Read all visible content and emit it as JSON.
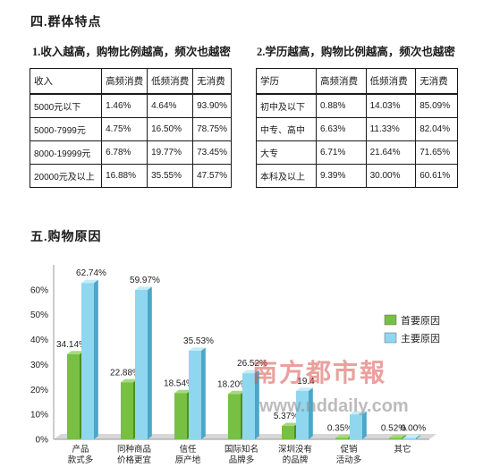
{
  "section4": {
    "title": "四.群体特点",
    "income": {
      "title": "1.收入越高，购物比例越高，频次也越密",
      "headers": [
        "收入",
        "高频消费",
        "低频消费",
        "无消费"
      ],
      "rows": [
        [
          "5000元以下",
          "1.46%",
          "4.64%",
          "93.90%"
        ],
        [
          "5000-7999元",
          "4.75%",
          "16.50%",
          "78.75%"
        ],
        [
          "8000-19999元",
          "6.78%",
          "19.77%",
          "73.45%"
        ],
        [
          "20000元及以上",
          "16.88%",
          "35.55%",
          "47.57%"
        ]
      ]
    },
    "education": {
      "title": "2.学历越高，购物比例越高，频次也越密",
      "headers": [
        "学历",
        "高频消费",
        "低频消费",
        "无消费"
      ],
      "rows": [
        [
          "初中及以下",
          "0.88%",
          "14.03%",
          "85.09%"
        ],
        [
          "中专、高中",
          "6.63%",
          "11.33%",
          "82.04%"
        ],
        [
          "大专",
          "6.71%",
          "21.64%",
          "71.65%"
        ],
        [
          "本科及以上",
          "9.39%",
          "30.00%",
          "60.61%"
        ]
      ]
    }
  },
  "section5": {
    "title": "五.购物原因"
  },
  "watermark": {
    "name": "南方都市報",
    "url": "www.nddaily.com"
  },
  "chart_data": {
    "type": "bar",
    "categories": [
      [
        "产品",
        "款式多"
      ],
      [
        "同种商品",
        "价格更宜"
      ],
      [
        "信任",
        "原产地"
      ],
      [
        "国际知名",
        "品牌多"
      ],
      [
        "深圳没有",
        "的品牌"
      ],
      [
        "促销",
        "活动多"
      ],
      [
        "其它"
      ]
    ],
    "series": [
      {
        "name": "首要原因",
        "color": "#77c043",
        "values": [
          34.14,
          22.88,
          18.54,
          18.2,
          5.37,
          0.35,
          0.52
        ],
        "labels": [
          "34.14%",
          "22.88%",
          "18.54%",
          "18.20%",
          "5.37%",
          "0.35%",
          "0.52%"
        ]
      },
      {
        "name": "主要原因",
        "color": "#8fd7ef",
        "values": [
          62.74,
          59.97,
          35.53,
          26.52,
          19.43,
          10.0,
          0.0
        ],
        "labels": [
          "62.74%",
          "59.97%",
          "35.53%",
          "26.52%",
          "19.4",
          "",
          "0.00%"
        ]
      }
    ],
    "yticks": [
      "0%",
      "10%",
      "20%",
      "30%",
      "40%",
      "50%",
      "60%"
    ],
    "ylim": [
      0,
      70
    ],
    "legend": "right"
  }
}
